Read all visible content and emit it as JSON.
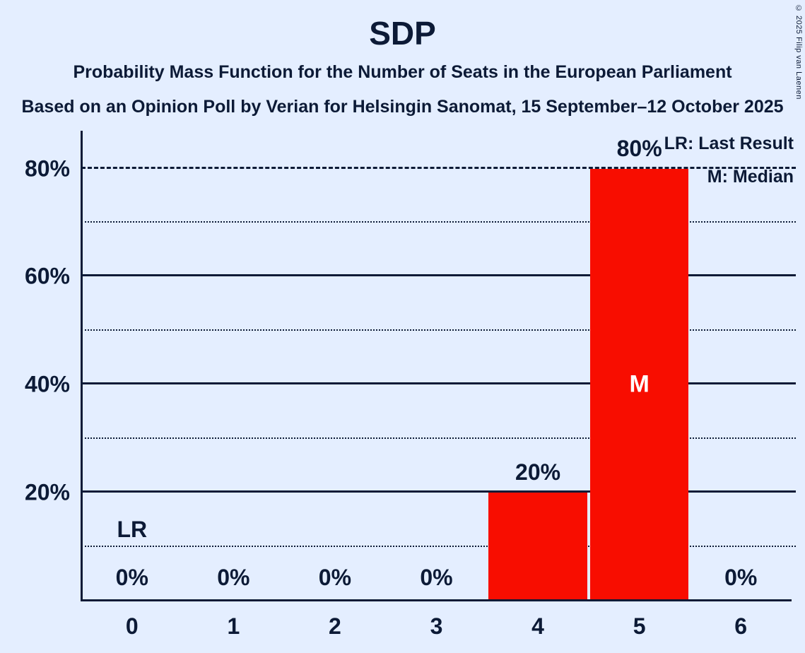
{
  "title": "SDP",
  "subtitles": [
    "Probability Mass Function for the Number of Seats in the European Parliament",
    "Based on an Opinion Poll by Verian for Helsingin Sanomat, 15 September–12 October 2025"
  ],
  "copyright": "© 2025 Filip van Laenen",
  "legend": {
    "lr": "LR: Last Result",
    "m": "M: Median"
  },
  "colors": {
    "background": "#e4eeff",
    "bar": "#f80d00",
    "text": "#0c1a36",
    "median_text": "#ffffff"
  },
  "chart_data": {
    "type": "bar",
    "title": "SDP",
    "categories": [
      "0",
      "1",
      "2",
      "3",
      "4",
      "5",
      "6"
    ],
    "values": [
      0,
      0,
      0,
      0,
      20,
      80,
      0
    ],
    "bar_labels": [
      "0%",
      "0%",
      "0%",
      "0%",
      "20%",
      "80%",
      "0%"
    ],
    "median": {
      "category": "5",
      "label": "M"
    },
    "last_result": {
      "category": "0",
      "label": "LR",
      "value": 0,
      "label_y": 10
    },
    "xlabel": "",
    "ylabel": "",
    "ylim": [
      0,
      87
    ],
    "yticks": [
      {
        "value": 20,
        "label": "20%",
        "style": "solid"
      },
      {
        "value": 40,
        "label": "40%",
        "style": "solid"
      },
      {
        "value": 60,
        "label": "60%",
        "style": "solid"
      },
      {
        "value": 80,
        "label": "80%",
        "style": "dashed"
      }
    ],
    "minor_yticks": [
      10,
      30,
      50,
      70
    ],
    "grid": true,
    "legend_position": "top-right"
  }
}
